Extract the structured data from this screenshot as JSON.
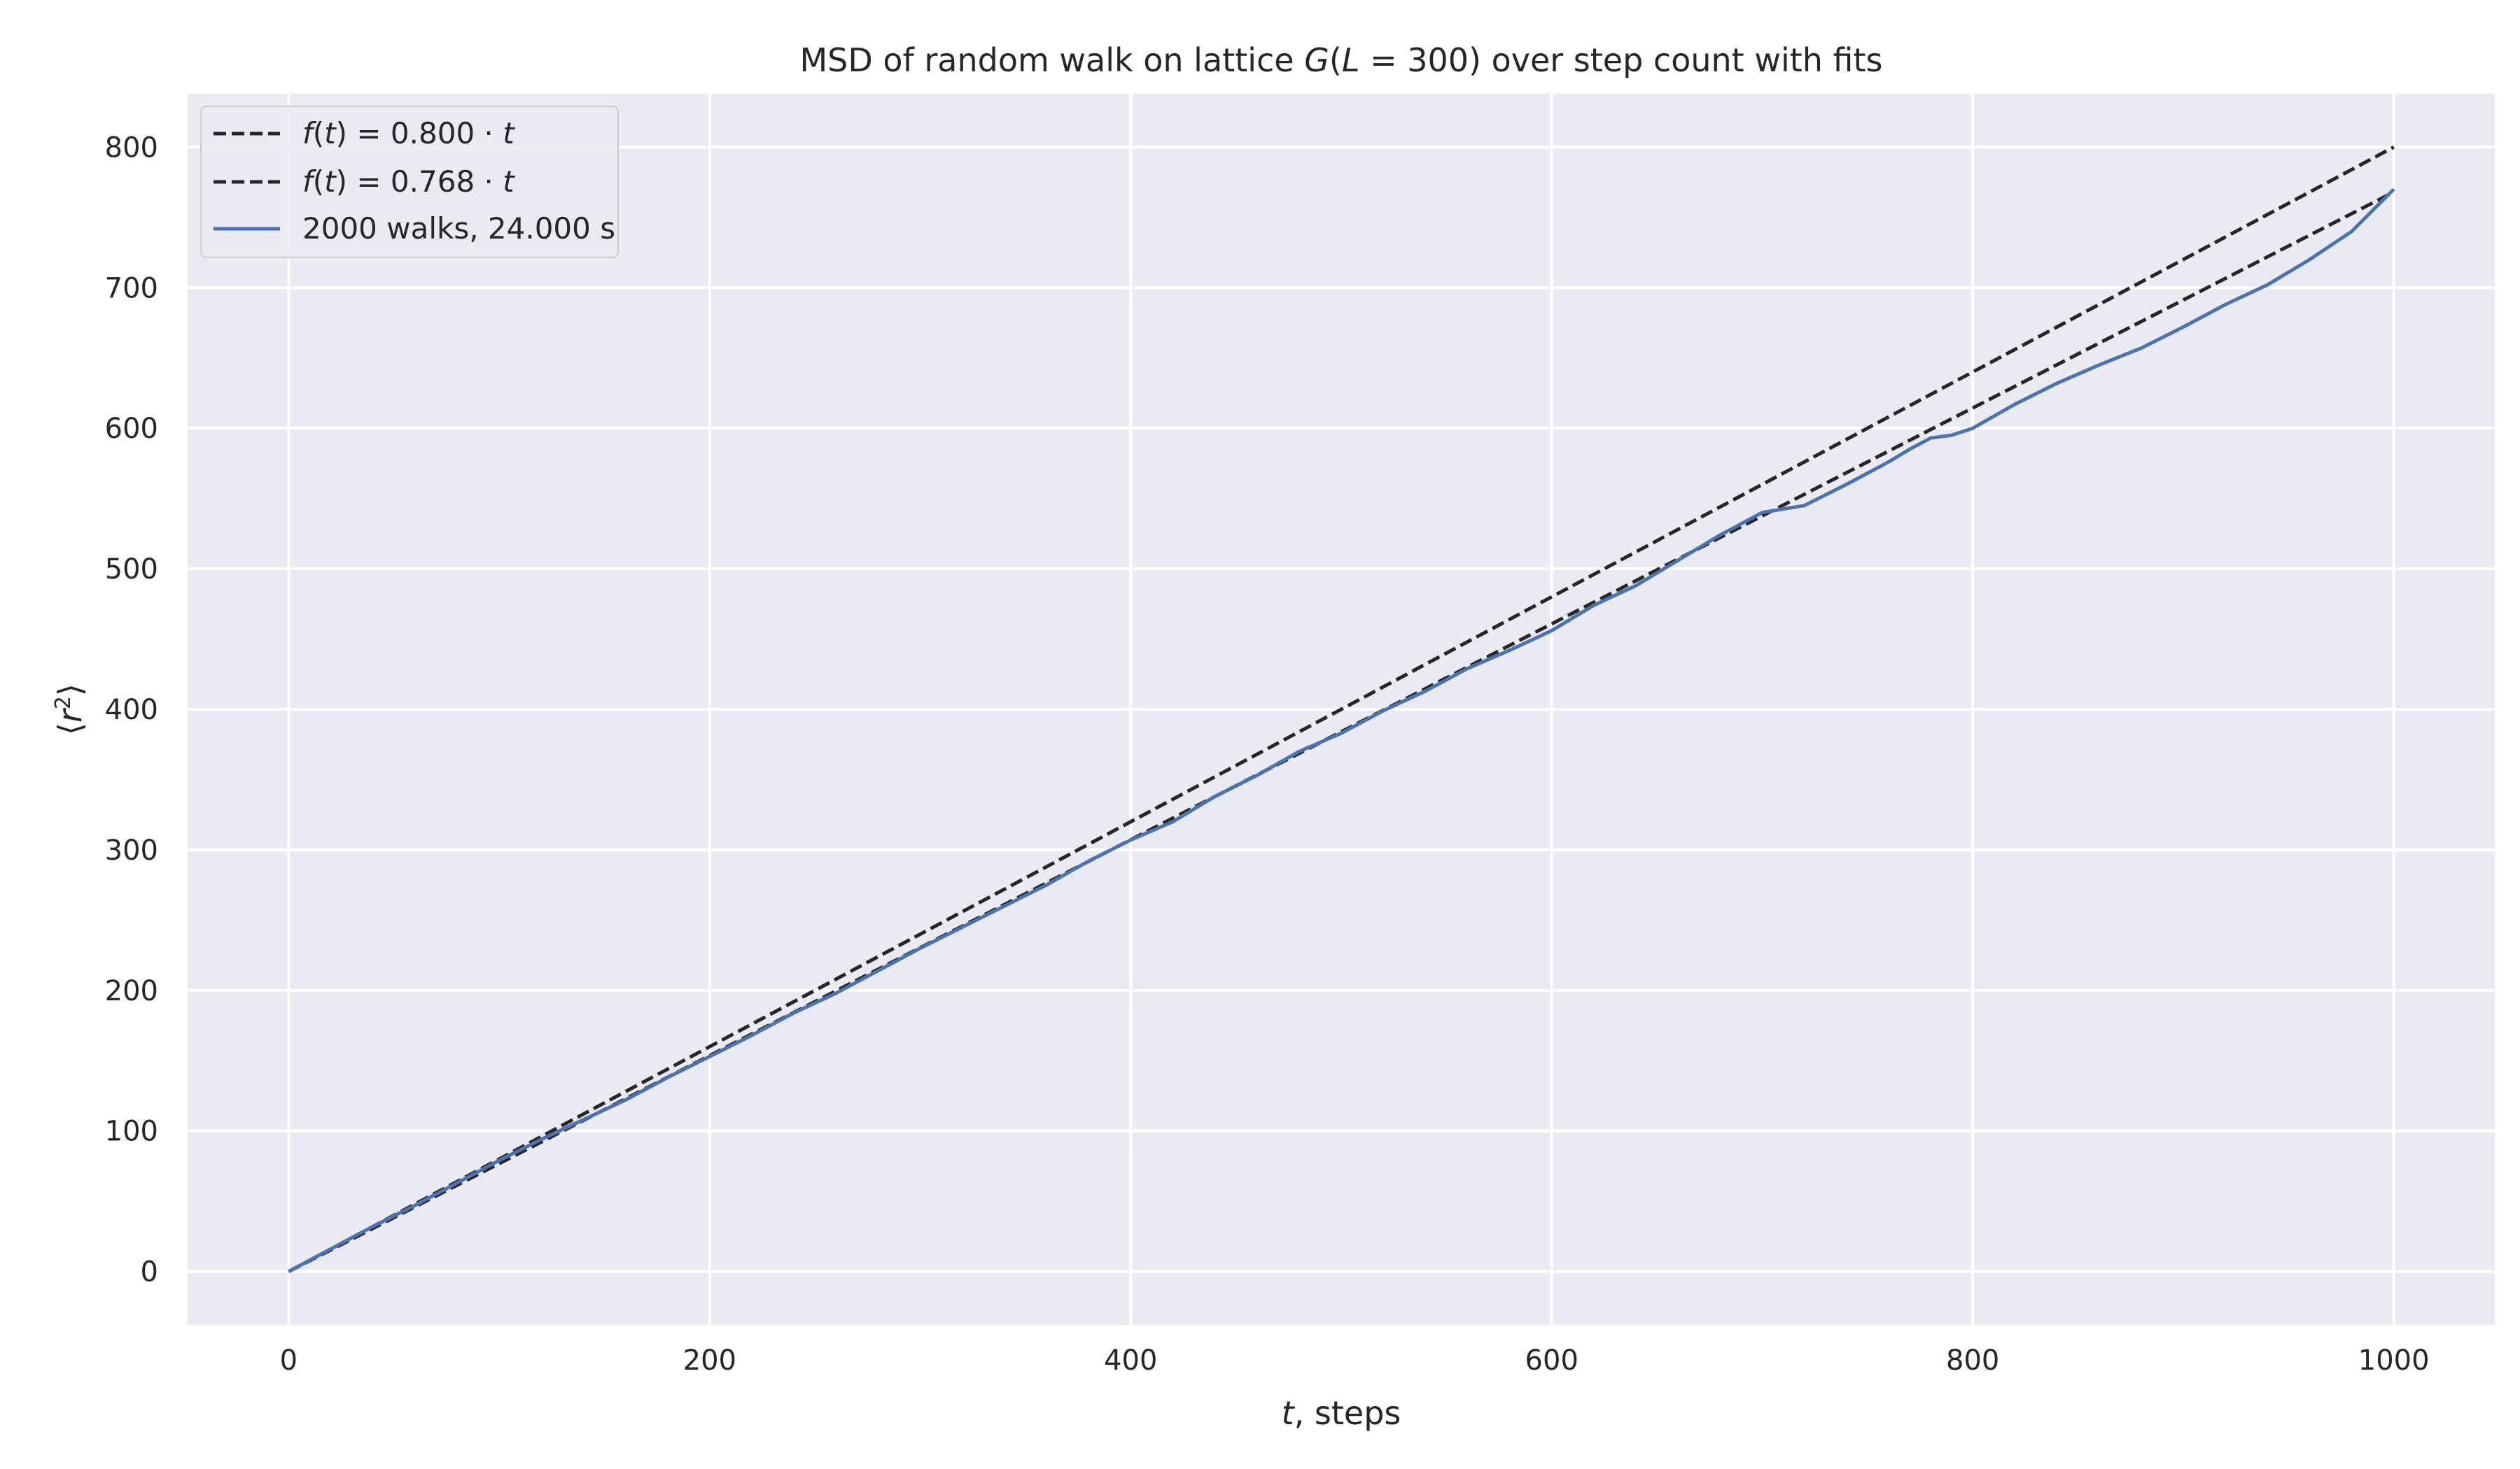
{
  "chart_data": {
    "type": "line",
    "title_parts": [
      "MSD of random walk on lattice ",
      "G",
      "(",
      "L",
      " = 300) over step count with fits"
    ],
    "xlabel_parts": [
      "t",
      ", steps"
    ],
    "ylabel_parts": [
      "⟨",
      "r",
      "2",
      "⟩"
    ],
    "xlim": [
      -48,
      1048
    ],
    "ylim": [
      -38,
      838
    ],
    "xticks": [
      0,
      200,
      400,
      600,
      800,
      1000
    ],
    "yticks": [
      0,
      100,
      200,
      300,
      400,
      500,
      600,
      700,
      800
    ],
    "grid": true,
    "legend_position": "top-left",
    "series": [
      {
        "name_parts": [
          "f",
          "(",
          "t",
          ") = 0.800 · ",
          "t"
        ],
        "style": "dashed",
        "color": "#262626",
        "x": [
          0,
          1000
        ],
        "y": [
          0,
          800
        ]
      },
      {
        "name_parts": [
          "f",
          "(",
          "t",
          ") = 0.768 · ",
          "t"
        ],
        "style": "dashed",
        "color": "#262626",
        "x": [
          0,
          1000
        ],
        "y": [
          0,
          768
        ]
      },
      {
        "name_parts": [
          "2000 walks, 24.000 s"
        ],
        "style": "solid",
        "color": "#4c72b0",
        "x": [
          0,
          20,
          40,
          60,
          80,
          100,
          120,
          140,
          160,
          180,
          200,
          220,
          240,
          260,
          280,
          300,
          320,
          340,
          360,
          380,
          400,
          420,
          440,
          460,
          480,
          500,
          520,
          540,
          560,
          580,
          600,
          620,
          640,
          660,
          680,
          700,
          720,
          740,
          760,
          770,
          780,
          790,
          800,
          820,
          840,
          860,
          880,
          900,
          920,
          940,
          960,
          980,
          1000
        ],
        "y": [
          0,
          16,
          32,
          47,
          63,
          79,
          94,
          108,
          122,
          138,
          153,
          168,
          184,
          198,
          214,
          230,
          245,
          260,
          275,
          292,
          307,
          320,
          338,
          353,
          370,
          383,
          399,
          413,
          429,
          442,
          456,
          474,
          488,
          506,
          524,
          540,
          545,
          560,
          576,
          585,
          593,
          595,
          600,
          617,
          632,
          645,
          657,
          672,
          688,
          702,
          720,
          740,
          770
        ]
      }
    ]
  }
}
